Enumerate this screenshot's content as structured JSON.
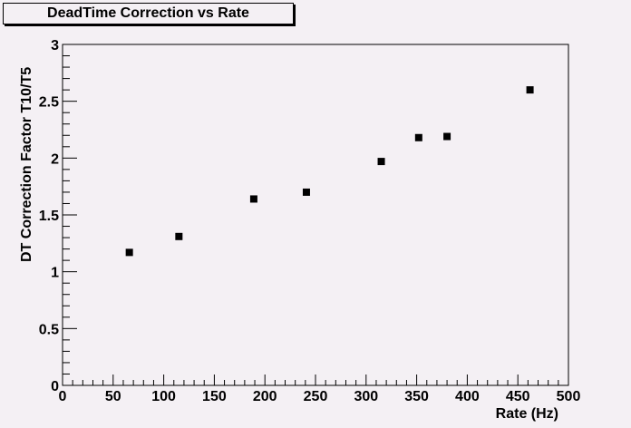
{
  "chart_data": {
    "type": "scatter",
    "title": "DeadTime Correction vs Rate",
    "xlabel": "Rate (Hz)",
    "ylabel": "DT Correction Factor T10/T5",
    "xlim": [
      0,
      500
    ],
    "ylim": [
      0,
      3
    ],
    "x_ticks": [
      "0",
      "50",
      "100",
      "150",
      "200",
      "250",
      "300",
      "350",
      "400",
      "450",
      "500"
    ],
    "y_ticks": [
      "0",
      "0.5",
      "1",
      "1.5",
      "2",
      "2.5",
      "3"
    ],
    "grid": false,
    "marker": "square",
    "marker_color": "#000000",
    "points": [
      {
        "x": 66,
        "y": 1.17
      },
      {
        "x": 115,
        "y": 1.31
      },
      {
        "x": 189,
        "y": 1.64
      },
      {
        "x": 241,
        "y": 1.7
      },
      {
        "x": 315,
        "y": 1.97
      },
      {
        "x": 352,
        "y": 2.18
      },
      {
        "x": 380,
        "y": 2.19
      },
      {
        "x": 462,
        "y": 2.6
      }
    ]
  },
  "colors": {
    "background": "#f4f0f4",
    "axis": "#000000"
  }
}
